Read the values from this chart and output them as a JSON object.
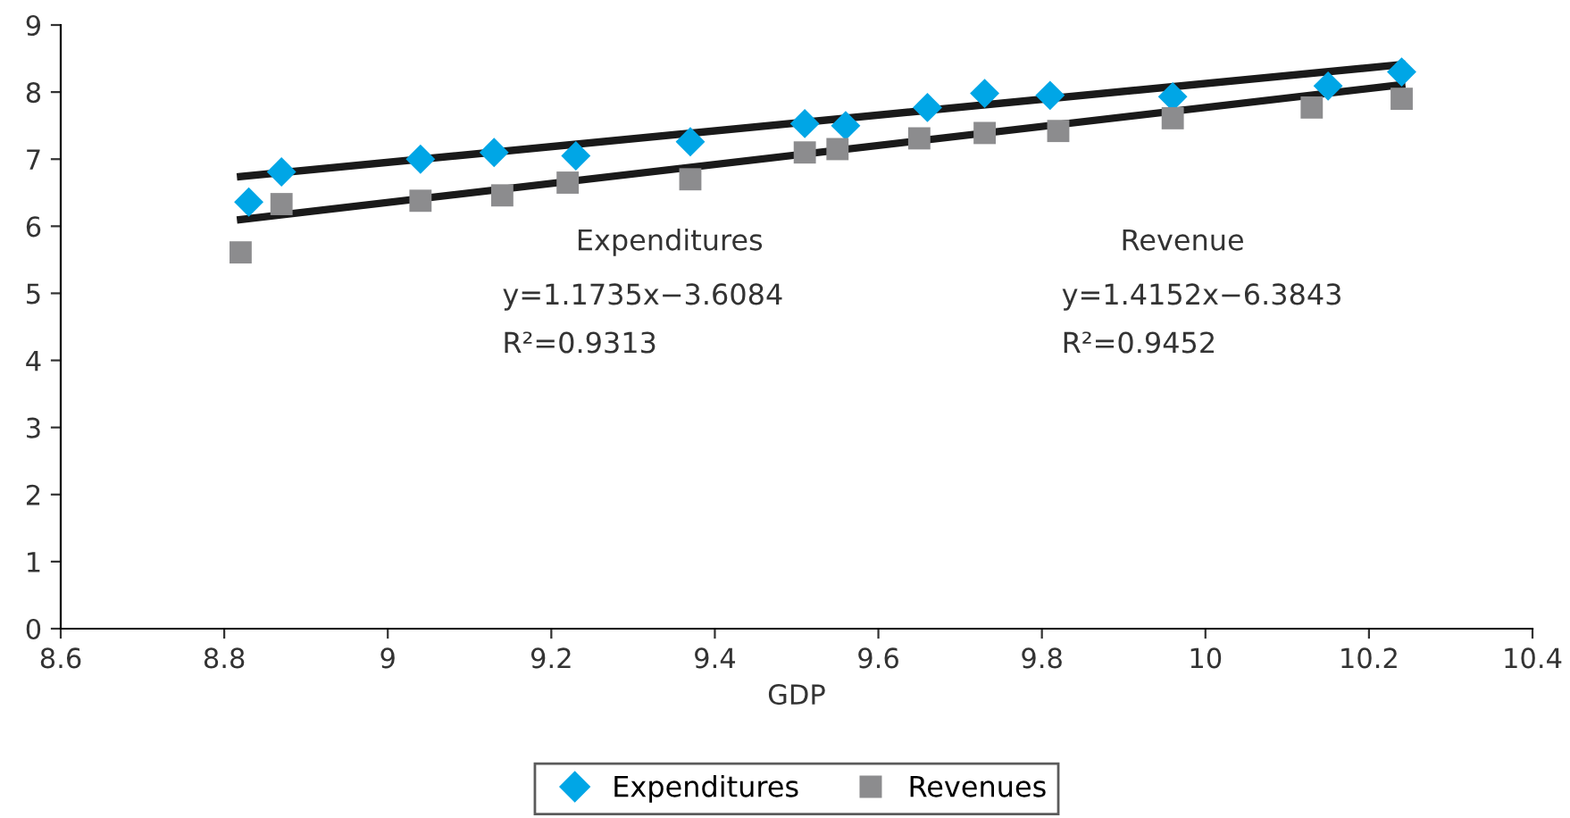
{
  "chart_data": {
    "type": "scatter",
    "xlabel": "GDP",
    "xlim": [
      8.6,
      10.4
    ],
    "xticks": [
      8.6,
      8.8,
      {
        "value": 9,
        "label": "9"
      },
      9.2,
      9.4,
      9.6,
      9.8,
      {
        "value": 10,
        "label": "10"
      },
      10.2,
      10.4
    ],
    "ylim": [
      0,
      9
    ],
    "yticks": [
      0,
      1,
      2,
      3,
      4,
      5,
      6,
      7,
      8,
      9
    ],
    "grid": false,
    "legend": "bottom",
    "series": [
      {
        "name": "Expenditures",
        "color": "#00a6e6",
        "marker": "diamond",
        "x": [
          8.83,
          8.87,
          9.04,
          9.13,
          9.23,
          9.37,
          9.51,
          9.56,
          9.66,
          9.73,
          9.81,
          9.96,
          10.15,
          10.24
        ],
        "values": [
          6.36,
          6.81,
          7.0,
          7.1,
          7.05,
          7.26,
          7.53,
          7.5,
          7.77,
          7.98,
          7.95,
          7.93,
          8.09,
          8.3
        ]
      },
      {
        "name": "Revenues",
        "color": "#8c8c8e",
        "marker": "square",
        "x": [
          8.82,
          8.87,
          9.04,
          9.14,
          9.22,
          9.37,
          9.51,
          9.55,
          9.65,
          9.73,
          9.82,
          9.96,
          10.13,
          10.24
        ],
        "values": [
          5.61,
          6.33,
          6.38,
          6.46,
          6.65,
          6.7,
          7.1,
          7.15,
          7.31,
          7.39,
          7.42,
          7.61,
          7.77,
          7.9
        ]
      },
      {
        "type": "line",
        "color": "#1a1a1a",
        "x": [
          8.82,
          10.24
        ],
        "values": [
          6.74,
          8.41
        ]
      },
      {
        "type": "line",
        "color": "#1a1a1a",
        "x": [
          8.82,
          10.24
        ],
        "values": [
          6.1,
          8.11
        ]
      }
    ],
    "annotations": [
      "Expenditures",
      "y=1.1735x−3.6084",
      "R²=0.9313",
      "Revenue",
      "y=1.4152x−6.3843",
      "R²=0.9452"
    ]
  }
}
